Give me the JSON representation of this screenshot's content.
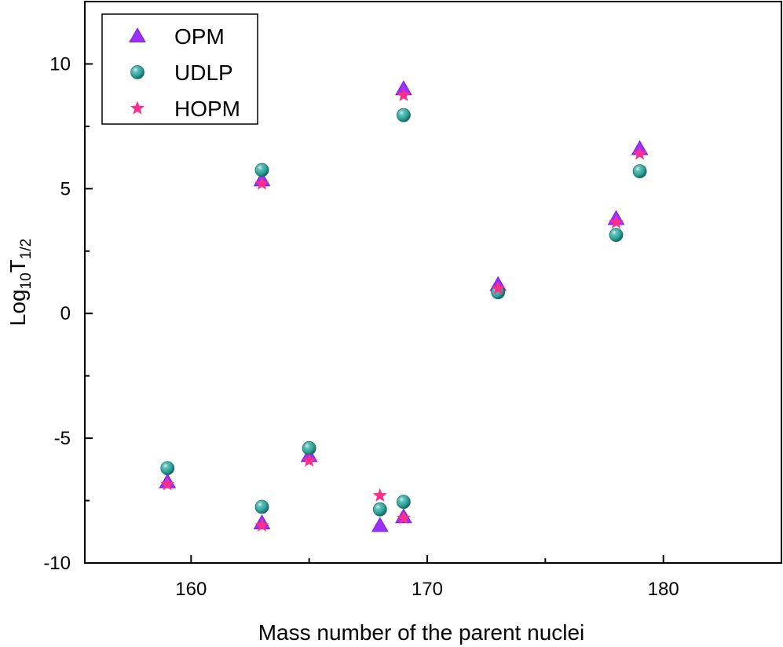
{
  "chart_data": {
    "type": "scatter",
    "xlabel": "Mass number of the parent nuclei",
    "ylabel": {
      "base": "Log",
      "base_sub": "10",
      "main": "T",
      "main_sub": "1/2"
    },
    "xlim": [
      155.5,
      185
    ],
    "ylim": [
      -10,
      12.5
    ],
    "x_ticks": [
      160,
      170,
      180
    ],
    "y_ticks": [
      -10,
      -5,
      0,
      5,
      10
    ],
    "x_tick_labels": [
      "160",
      "170",
      "180"
    ],
    "y_tick_labels": [
      "-10",
      "-5",
      "0",
      "5",
      "10"
    ],
    "legend_position": "top-left",
    "grid": false,
    "series": [
      {
        "name": "OPM",
        "marker": "triangle",
        "color": "#9b30ff",
        "points": [
          [
            159,
            -6.75
          ],
          [
            163,
            5.35
          ],
          [
            163,
            -8.4
          ],
          [
            165,
            -5.7
          ],
          [
            168,
            -8.5
          ],
          [
            169,
            9.0
          ],
          [
            169,
            -8.15
          ],
          [
            173,
            1.15
          ],
          [
            178,
            3.8
          ],
          [
            179,
            6.6
          ]
        ]
      },
      {
        "name": "UDLP",
        "marker": "sphere",
        "color": "#2a9d97",
        "points": [
          [
            159,
            -6.2
          ],
          [
            163,
            5.75
          ],
          [
            163,
            -7.75
          ],
          [
            165,
            -5.4
          ],
          [
            168,
            -7.85
          ],
          [
            169,
            7.95
          ],
          [
            169,
            -7.55
          ],
          [
            173,
            0.85
          ],
          [
            178,
            3.15
          ],
          [
            179,
            5.7
          ]
        ]
      },
      {
        "name": "HOPM",
        "marker": "star",
        "color": "#ff2d8a",
        "points": [
          [
            159,
            -6.85
          ],
          [
            163,
            5.2
          ],
          [
            163,
            -8.5
          ],
          [
            165,
            -5.9
          ],
          [
            168,
            -7.3
          ],
          [
            169,
            8.75
          ],
          [
            169,
            -8.2
          ],
          [
            173,
            1.0
          ],
          [
            178,
            3.65
          ],
          [
            179,
            6.4
          ]
        ]
      }
    ]
  }
}
